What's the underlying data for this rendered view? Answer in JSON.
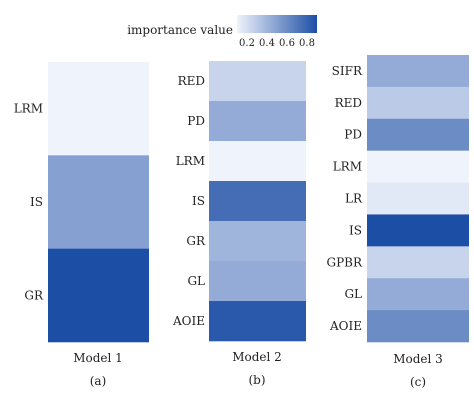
{
  "colorbar": {
    "label": "importance value",
    "ticks": [
      "0.2",
      "0.4",
      "0.6",
      "0.8"
    ],
    "min": 0.1,
    "max": 0.9,
    "color_low": "#eff3fb",
    "color_high": "#1d4ea6"
  },
  "chart_data": [
    {
      "type": "heatmap",
      "title": "Model 1",
      "panel_label": "(a)",
      "features": [
        "LRM",
        "IS",
        "GR"
      ],
      "values": [
        0.1,
        0.5,
        0.9
      ]
    },
    {
      "type": "heatmap",
      "title": "Model 2",
      "panel_label": "(b)",
      "features": [
        "RED",
        "PD",
        "LRM",
        "IS",
        "GR",
        "GL",
        "AOIE"
      ],
      "values": [
        0.25,
        0.45,
        0.1,
        0.75,
        0.4,
        0.45,
        0.85
      ]
    },
    {
      "type": "heatmap",
      "title": "Model 3",
      "panel_label": "(c)",
      "features": [
        "SIFR",
        "RED",
        "PD",
        "LRM",
        "LR",
        "IS",
        "GPBR",
        "GL",
        "AOIE"
      ],
      "values": [
        0.45,
        0.3,
        0.6,
        0.1,
        0.15,
        0.9,
        0.25,
        0.45,
        0.6
      ]
    }
  ]
}
